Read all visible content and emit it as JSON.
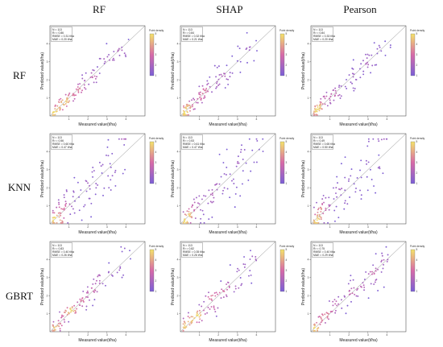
{
  "columns": [
    "RF",
    "SHAP",
    "Pearson"
  ],
  "rows": [
    "RF",
    "KNN",
    "GBRT"
  ],
  "colors": {
    "density_low": "#7b5fd6",
    "density_mid": "#d76aa8",
    "density_high": "#f4e26a",
    "identity_line": "#8a8a8a"
  },
  "chart_data": {
    "type": "scatter",
    "xlabel": "Measured value(t/ha)",
    "ylabel": "Predicted value(t/ha)",
    "xlim": [
      0,
      5
    ],
    "ylim": [
      0,
      5
    ],
    "x_ticks": [
      "1",
      "2",
      "3",
      "4"
    ],
    "y_ticks": [
      "1",
      "2",
      "3",
      "4"
    ],
    "colorbar_title": "Point density",
    "colorbar_ticks": [
      "1",
      "2",
      "3",
      "4",
      "5"
    ],
    "grid": false,
    "reference_line": "y = x",
    "panels": [
      {
        "row": "RF",
        "column": "RF",
        "stats": [
          "N = 113",
          "R² = 0.86",
          "RMSE = 0.31 t/ha",
          "MAE = 0.20 t/ha"
        ],
        "noise": 0.28,
        "seed": 11
      },
      {
        "row": "RF",
        "column": "SHAP",
        "stats": [
          "N = 113",
          "R² = 0.84",
          "RMSE = 0.32 t/ha",
          "MAE = 0.21 t/ha"
        ],
        "noise": 0.3,
        "seed": 23
      },
      {
        "row": "RF",
        "column": "Pearson",
        "stats": [
          "N = 113",
          "R² = 0.84",
          "RMSE = 0.33 t/ha",
          "MAE = 0.20 t/ha"
        ],
        "noise": 0.31,
        "seed": 37
      },
      {
        "row": "KNN",
        "column": "RF",
        "stats": [
          "N = 113",
          "R² = 0.56",
          "RMSE = 0.60 t/ha",
          "MAE = 0.47 t/ha"
        ],
        "noise": 0.62,
        "seed": 41
      },
      {
        "row": "KNN",
        "column": "SHAP",
        "stats": [
          "N = 113",
          "R² = 0.53",
          "RMSE = 0.61 t/ha",
          "MAE = 0.47 t/ha"
        ],
        "noise": 0.64,
        "seed": 53
      },
      {
        "row": "KNN",
        "column": "Pearson",
        "stats": [
          "N = 113",
          "R² = 0.49",
          "RMSE = 0.65 t/ha",
          "MAE = 0.50 t/ha"
        ],
        "noise": 0.68,
        "seed": 67
      },
      {
        "row": "GBRT",
        "column": "RF",
        "stats": [
          "N = 113",
          "R² = 0.83",
          "RMSE = 0.40 t/ha",
          "MAE = 0.26 t/ha"
        ],
        "noise": 0.34,
        "seed": 71
      },
      {
        "row": "GBRT",
        "column": "SHAP",
        "stats": [
          "N = 113",
          "R² = 0.82",
          "RMSE = 0.35 t/ha",
          "MAE = 0.26 t/ha"
        ],
        "noise": 0.36,
        "seed": 83
      },
      {
        "row": "GBRT",
        "column": "Pearson",
        "stats": [
          "N = 113",
          "R² = 0.75",
          "RMSE = 0.40 t/ha",
          "MAE = 0.29 t/ha"
        ],
        "noise": 0.42,
        "seed": 97
      }
    ]
  }
}
